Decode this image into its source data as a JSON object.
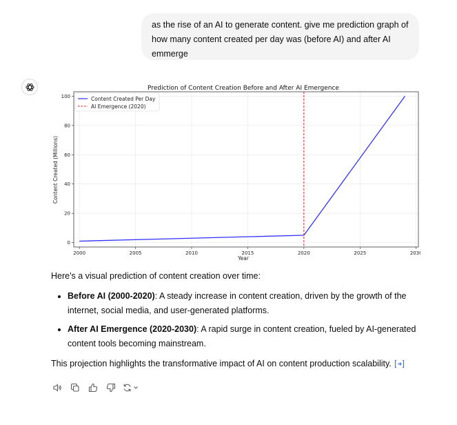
{
  "user_message": "as the rise of an AI to generate content. give me prediction graph of how many content created per day was (before AI) and after AI emmerge",
  "chart_data": {
    "type": "line",
    "title": "Prediction of Content Creation Before and After AI Emergence",
    "xlabel": "Year",
    "ylabel": "Content Created (Millions)",
    "xlim": [
      1999.5,
      2030.2
    ],
    "ylim": [
      -3,
      103
    ],
    "xticks": [
      "2000",
      "2005",
      "2010",
      "2015",
      "2020",
      "2025",
      "2030"
    ],
    "yticks": [
      "0",
      "20",
      "40",
      "60",
      "80",
      "100"
    ],
    "grid": true,
    "legend_position": "top-left",
    "series": [
      {
        "name": "Content Created Per Day",
        "color": "#2f2fff",
        "style": "solid",
        "x": [
          2000,
          2005,
          2010,
          2015,
          2020,
          2029
        ],
        "y": [
          1,
          2,
          3,
          4,
          5,
          100
        ]
      }
    ],
    "vline": {
      "name": "AI Emergence (2020)",
      "x": 2020,
      "color": "#dd0000",
      "style": "dashed"
    }
  },
  "response": {
    "intro": "Here's a visual prediction of content creation over time:",
    "bullets": [
      {
        "bold": "Before AI (2000-2020)",
        "text": ": A steady increase in content creation, driven by the growth of the internet, social media, and user-generated platforms."
      },
      {
        "bold": "After AI Emergence (2020-2030)",
        "text": ": A rapid surge in content creation, fueled by AI-generated content tools becoming mainstream."
      }
    ],
    "closing": "This projection highlights the transformative impact of AI on content production scalability."
  },
  "icons": {
    "avatar": "openai-logo-icon",
    "citation": "code-interpreter-icon",
    "actions": [
      "read-aloud-icon",
      "copy-icon",
      "thumbs-up-icon",
      "thumbs-down-icon",
      "regenerate-icon"
    ]
  }
}
